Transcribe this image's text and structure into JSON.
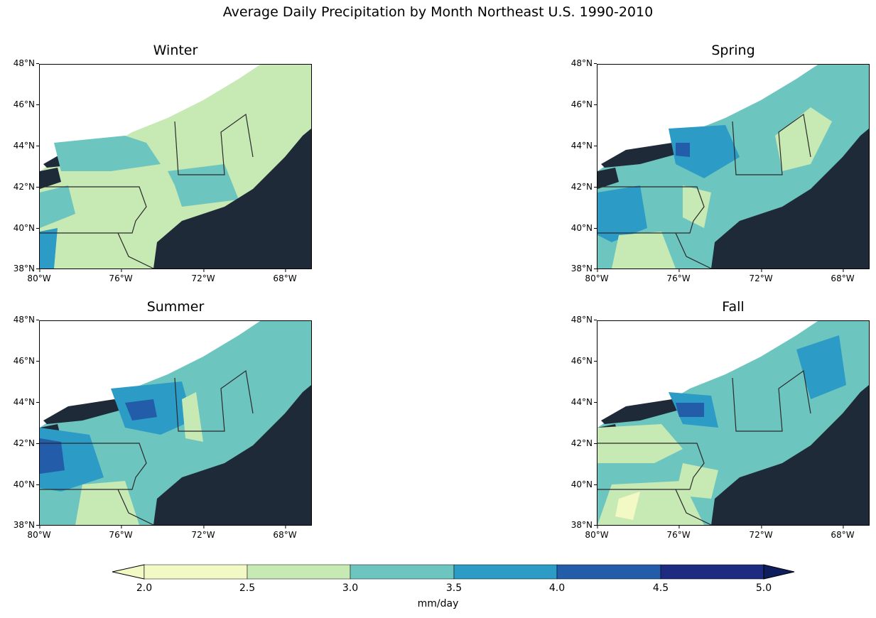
{
  "title": "Average Daily Precipitation by Month Northeast U.S. 1990-2010",
  "colors": {
    "land_base": "#c7e9b4",
    "ocean": "#1e2a38",
    "border": "#2a2a2a",
    "levels": [
      "#f3f9c4",
      "#c7e9b4",
      "#6dc5bf",
      "#2c9bc5",
      "#235ca9",
      "#1d2b80",
      "#0f1e5c"
    ]
  },
  "y_ticks": [
    "48°N",
    "46°N",
    "44°N",
    "42°N",
    "40°N",
    "38°N"
  ],
  "x_ticks": [
    "80°W",
    "76°W",
    "72°W",
    "68°W"
  ],
  "panels": [
    {
      "season": "Winter",
      "level_base": 1
    },
    {
      "season": "Spring",
      "level_base": 2
    },
    {
      "season": "Summer",
      "level_base": 2
    },
    {
      "season": "Fall",
      "level_base": 2
    }
  ],
  "colorbar": {
    "ticks": [
      "2.0",
      "2.5",
      "3.0",
      "3.5",
      "4.0",
      "4.5",
      "5.0"
    ],
    "label": "mm/day",
    "extend": "both"
  }
}
